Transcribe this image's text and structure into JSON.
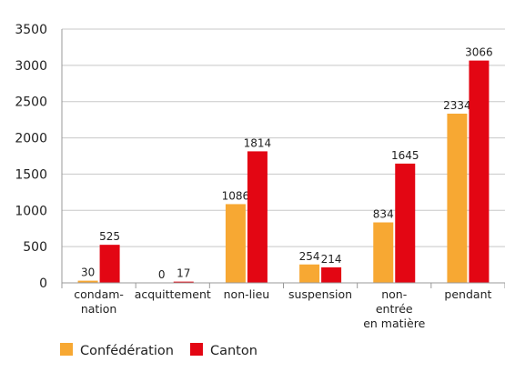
{
  "chart_data": {
    "type": "bar",
    "categories": [
      [
        "condam-",
        "nation"
      ],
      [
        "acquittement"
      ],
      [
        "non-lieu"
      ],
      [
        "suspension"
      ],
      [
        "non-",
        "entrée",
        "en matière"
      ],
      [
        "pendant"
      ]
    ],
    "series": [
      {
        "name": "Confédération",
        "color": "#f7a833",
        "values": [
          30,
          0,
          1086,
          254,
          834,
          2334
        ]
      },
      {
        "name": "Canton",
        "color": "#e30613",
        "values": [
          525,
          17,
          1814,
          214,
          1645,
          3066
        ]
      }
    ],
    "ylim": [
      0,
      3500
    ],
    "yticks": [
      0,
      500,
      1000,
      1500,
      2000,
      2500,
      3000,
      3500
    ],
    "grid": true,
    "legend": "bottom"
  }
}
